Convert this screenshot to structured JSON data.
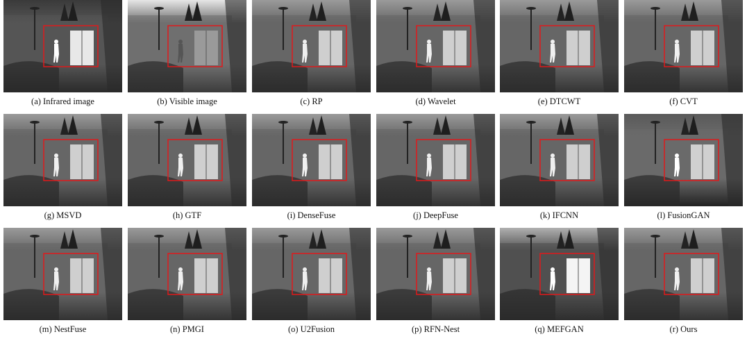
{
  "panels": [
    {
      "caption": "(a) Infrared image"
    },
    {
      "caption": "(b) Visible image"
    },
    {
      "caption": "(c) RP"
    },
    {
      "caption": "(d) Wavelet"
    },
    {
      "caption": "(e) DTCWT"
    },
    {
      "caption": "(f) CVT"
    },
    {
      "caption": "(g) MSVD"
    },
    {
      "caption": "(h) GTF"
    },
    {
      "caption": "(i) DenseFuse"
    },
    {
      "caption": "(j) DeepFuse"
    },
    {
      "caption": "(k) IFCNN"
    },
    {
      "caption": "(l) FusionGAN"
    },
    {
      "caption": "(m) NestFuse"
    },
    {
      "caption": "(n) PMGI"
    },
    {
      "caption": "(o) U2Fusion"
    },
    {
      "caption": "(p) RFN-Nest"
    },
    {
      "caption": "(q) MEFGAN"
    },
    {
      "caption": "(r) Ours"
    }
  ]
}
